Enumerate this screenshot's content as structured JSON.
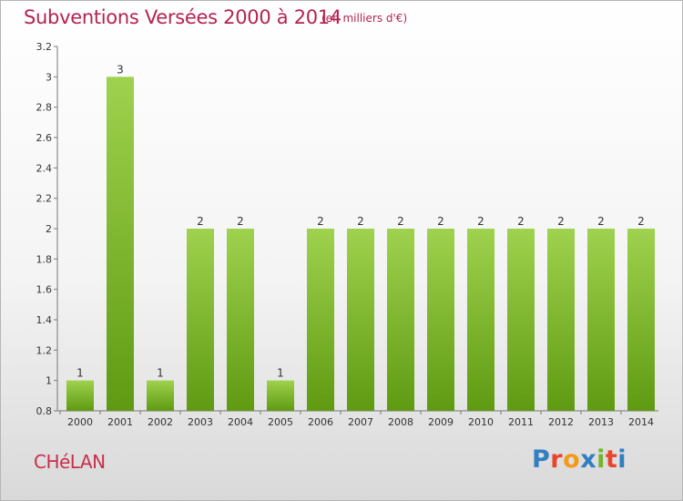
{
  "header": {
    "title": "Subventions Versées 2000 à 2014",
    "subtitle": "(en milliers d'€)"
  },
  "footer": {
    "commune": "CHéLAN",
    "brand": "Proxiti"
  },
  "colors": {
    "title": "#b5234f",
    "bar_light": "#9fd24e",
    "bar_dark": "#5f9a12",
    "logo_letters": [
      "#2f7fc2",
      "#e8452c",
      "#f39a1b",
      "#2f7fc2",
      "#73b52c",
      "#e8452c",
      "#2f7fc2"
    ]
  },
  "chart_data": {
    "type": "bar",
    "title": "Subventions Versées 2000 à 2014",
    "subtitle": "(en milliers d'€)",
    "categories": [
      "2000",
      "2001",
      "2002",
      "2003",
      "2004",
      "2005",
      "2006",
      "2007",
      "2008",
      "2009",
      "2010",
      "2011",
      "2012",
      "2013",
      "2014"
    ],
    "values": [
      1,
      3,
      1,
      2,
      2,
      1,
      2,
      2,
      2,
      2,
      2,
      2,
      2,
      2,
      2
    ],
    "value_labels": [
      "1",
      "3",
      "1",
      "2",
      "2",
      "1",
      "2",
      "2",
      "2",
      "2",
      "2",
      "2",
      "2",
      "2",
      "2"
    ],
    "ylim": [
      0.8,
      3.2
    ],
    "yticks": [
      0.8,
      1,
      1.2,
      1.4,
      1.6,
      1.8,
      2,
      2.2,
      2.4,
      2.6,
      2.8,
      3,
      3.2
    ],
    "ytick_labels": [
      "0.8",
      "1",
      "1.2",
      "1.4",
      "1.6",
      "1.8",
      "2",
      "2.2",
      "2.4",
      "2.6",
      "2.8",
      "3",
      "3.2"
    ],
    "xlabel": "",
    "ylabel": "",
    "grid": false
  }
}
